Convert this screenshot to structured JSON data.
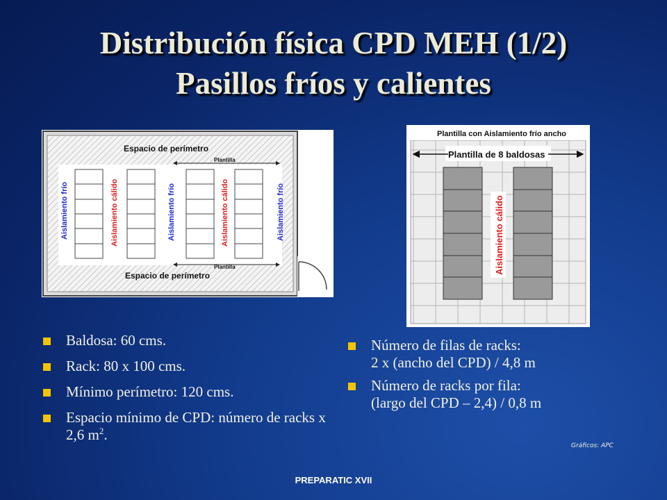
{
  "title": {
    "line1": "Distribución física CPD MEH (1/2)",
    "line2": "Pasillos fríos y calientes"
  },
  "figure1": {
    "top_label": "Espacio de perímetro",
    "bottom_label": "Espacio de perímetro",
    "plantilla_top": "Plantilla",
    "plantilla_bottom": "Plantilla",
    "cold_aisle_labels": [
      "Aislamiento frío",
      "Aislamiento frío",
      "Aislamiento frío"
    ],
    "hot_aisle_labels": [
      "Aislamiento cálido",
      "Aislamiento cálido"
    ],
    "colors": {
      "cold": "#1a2ad6",
      "hot": "#e01c1c"
    }
  },
  "figure2": {
    "header": "Plantilla con Aislamiento frío ancho",
    "template_label": "Plantilla de 8 baldosas",
    "hot_aisle_label": "Aislamiento cálido"
  },
  "left_bullets": [
    {
      "text": "Baldosa: 60 cms."
    },
    {
      "text": "Rack: 80 x 100 cms."
    },
    {
      "text": "Mínimo perímetro: 120 cms."
    },
    {
      "text": "Espacio mínimo de CPD: número de racks x 2,6 m",
      "sup": "2",
      "suffix": "."
    }
  ],
  "right_bullets": [
    {
      "line1": "Número de filas de racks:",
      "line2": "2 x (ancho del CPD) / 4,8 m"
    },
    {
      "line1": "Número de racks por fila:",
      "line2": "(largo del CPD – 2,4) / 0,8 m"
    }
  ],
  "credit": "Gráficos: APC",
  "footer": "PREPARATIC XVII",
  "colors": {
    "bullet": "#f3c400",
    "title": "#ecebd6",
    "background": "#0a2466"
  }
}
